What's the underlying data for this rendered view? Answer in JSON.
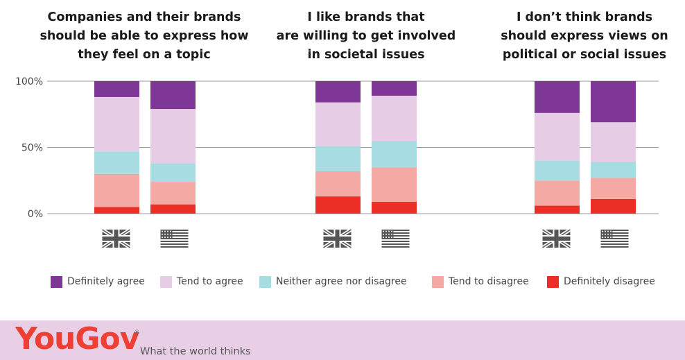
{
  "chart_data": {
    "type": "bar",
    "stacked": true,
    "y_tick_labels": [
      "100%",
      "50%",
      "0%"
    ],
    "ylim": [
      0,
      100
    ],
    "grid": true,
    "legend_position": "bottom",
    "panels": [
      {
        "title": "Companies and their brands\nshould be able to express how\nthey feel on a topic",
        "categories": [
          "UK",
          "US"
        ],
        "series": [
          {
            "name": "Definitely disagree",
            "values": [
              5,
              7
            ]
          },
          {
            "name": "Tend to disagree",
            "values": [
              25,
              17
            ]
          },
          {
            "name": "Neither agree nor disagree",
            "values": [
              17,
              14
            ]
          },
          {
            "name": "Tend to agree",
            "values": [
              41,
              41
            ]
          },
          {
            "name": "Definitely agree",
            "values": [
              12,
              21
            ]
          }
        ]
      },
      {
        "title": "I like brands that\nare willing to get involved\nin societal issues",
        "categories": [
          "UK",
          "US"
        ],
        "series": [
          {
            "name": "Definitely disagree",
            "values": [
              13,
              9
            ]
          },
          {
            "name": "Tend to disagree",
            "values": [
              19,
              26
            ]
          },
          {
            "name": "Neither agree nor disagree",
            "values": [
              19,
              20
            ]
          },
          {
            "name": "Tend to agree",
            "values": [
              33,
              34
            ]
          },
          {
            "name": "Definitely agree",
            "values": [
              16,
              11
            ]
          }
        ]
      },
      {
        "title": "I don’t think brands\nshould express views on\npolitical or social issues",
        "categories": [
          "UK",
          "US"
        ],
        "series": [
          {
            "name": "Definitely disagree",
            "values": [
              6,
              11
            ]
          },
          {
            "name": "Tend to disagree",
            "values": [
              19,
              16
            ]
          },
          {
            "name": "Neither agree nor disagree",
            "values": [
              15,
              12
            ]
          },
          {
            "name": "Tend to agree",
            "values": [
              36,
              30
            ]
          },
          {
            "name": "Definitely agree",
            "values": [
              24,
              31
            ]
          }
        ]
      }
    ]
  },
  "colors": {
    "Definitely agree": "#7e3796",
    "Tend to agree": "#e6cde5",
    "Neither agree nor disagree": "#a7dde2",
    "Tend to disagree": "#f5a9a5",
    "Definitely disagree": "#eb2f26",
    "grid": "#9a9a9a",
    "flag": "#555555",
    "footer_bg": "#e8cfe6",
    "logo": "#ee3f34"
  },
  "legend": [
    {
      "label": "Definitely agree",
      "key": "Definitely agree"
    },
    {
      "label": "Tend to agree",
      "key": "Tend to agree"
    },
    {
      "label": "Neither agree nor disagree",
      "key": "Neither agree nor disagree"
    },
    {
      "label": "Tend to disagree",
      "key": "Tend to disagree"
    },
    {
      "label": "Definitely disagree",
      "key": "Definitely disagree"
    }
  ],
  "flag_icons": [
    "uk-flag-icon",
    "us-flag-icon"
  ],
  "footer": {
    "logo": "YouGov",
    "logo_mark": "®",
    "tagline": "What the world thinks"
  }
}
